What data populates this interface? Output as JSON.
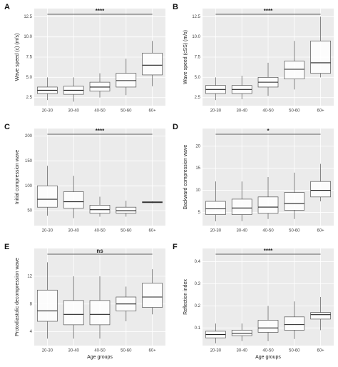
{
  "chart_data": [
    {
      "type": "box",
      "panel": "A",
      "ylabel": "Wave speed (c) (m/s)",
      "significance": "****",
      "categories": [
        "20-30",
        "30-40",
        "40-50",
        "50-60",
        "60+"
      ],
      "boxes": [
        {
          "min": 2.2,
          "q1": 3.0,
          "median": 3.4,
          "q3": 3.8,
          "max": 5.0
        },
        {
          "min": 2.0,
          "q1": 2.9,
          "median": 3.4,
          "q3": 3.9,
          "max": 5.0
        },
        {
          "min": 2.5,
          "q1": 3.3,
          "median": 3.8,
          "q3": 4.4,
          "max": 5.5
        },
        {
          "min": 2.8,
          "q1": 3.8,
          "median": 4.6,
          "q3": 5.5,
          "max": 7.3
        },
        {
          "min": 3.9,
          "q1": 5.3,
          "median": 6.5,
          "q3": 8.0,
          "max": 9.5
        }
      ],
      "ylim": [
        1.5,
        13.5
      ],
      "yticks": [
        2.5,
        {
          "value": 5,
          "label": "5.0"
        },
        7.5,
        {
          "value": 10,
          "label": "10.0"
        },
        12.5
      ],
      "grid": true
    },
    {
      "type": "box",
      "panel": "B",
      "ylabel": "Wave speed (cSS) (m/s)",
      "significance": "****",
      "categories": [
        "20-30",
        "30-40",
        "40-50",
        "50-60",
        "60+"
      ],
      "boxes": [
        {
          "min": 2.2,
          "q1": 3.0,
          "median": 3.5,
          "q3": 4.0,
          "max": 5.0
        },
        {
          "min": 2.3,
          "q1": 3.0,
          "median": 3.5,
          "q3": 4.0,
          "max": 5.2
        },
        {
          "min": 2.7,
          "q1": 3.8,
          "median": 4.4,
          "q3": 5.0,
          "max": 6.8
        },
        {
          "min": 3.5,
          "q1": 4.8,
          "median": 6.0,
          "q3": 7.0,
          "max": 9.5
        },
        {
          "min": 5.0,
          "q1": 5.5,
          "median": 6.8,
          "q3": 9.5,
          "max": 12.5
        }
      ],
      "ylim": [
        1.5,
        13.5
      ],
      "yticks": [
        2.5,
        {
          "value": 5,
          "label": "5.0"
        },
        7.5,
        {
          "value": 10,
          "label": "10.0"
        },
        12.5
      ],
      "grid": true
    },
    {
      "type": "box",
      "panel": "C",
      "ylabel": "Initial compression wave",
      "significance": "****",
      "categories": [
        "20-30",
        "30-40",
        "40-50",
        "50-60",
        "60+"
      ],
      "boxes": [
        {
          "min": 40,
          "q1": 57,
          "median": 73,
          "q3": 100,
          "max": 140
        },
        {
          "min": 35,
          "q1": 55,
          "median": 68,
          "q3": 88,
          "max": 120
        },
        {
          "min": 38,
          "q1": 45,
          "median": 52,
          "q3": 61,
          "max": 78
        },
        {
          "min": 38,
          "q1": 45,
          "median": 50,
          "q3": 57,
          "max": 70
        },
        {
          "min": 65,
          "q1": 66,
          "median": 67,
          "q3": 68,
          "max": 69
        }
      ],
      "ylim": [
        20,
        215
      ],
      "yticks": [
        50,
        100,
        150,
        200
      ],
      "grid": true
    },
    {
      "type": "box",
      "panel": "D",
      "ylabel": "Backward compression wave",
      "significance": "*",
      "categories": [
        "20-30",
        "30-40",
        "40-50",
        "50-60",
        "60+"
      ],
      "boxes": [
        {
          "min": 3,
          "q1": 4.5,
          "median": 5.8,
          "q3": 7.5,
          "max": 12
        },
        {
          "min": 3,
          "q1": 4.5,
          "median": 6,
          "q3": 8,
          "max": 12
        },
        {
          "min": 3.5,
          "q1": 4.8,
          "median": 6.2,
          "q3": 8.5,
          "max": 13
        },
        {
          "min": 3.5,
          "q1": 5.5,
          "median": 7,
          "q3": 9.5,
          "max": 14
        },
        {
          "min": 7.5,
          "q1": 8.5,
          "median": 10,
          "q3": 12,
          "max": 16
        }
      ],
      "ylim": [
        2,
        24
      ],
      "yticks": [
        5,
        10,
        15,
        20
      ],
      "grid": true
    },
    {
      "type": "box",
      "panel": "E",
      "ylabel": "Protodiastolic decompression wave",
      "significance": "ns",
      "xlabel": "Age groups",
      "categories": [
        "20-30",
        "30-40",
        "40-50",
        "50-60",
        "60+"
      ],
      "boxes": [
        {
          "min": 3,
          "q1": 5.5,
          "median": 7,
          "q3": 10,
          "max": 14
        },
        {
          "min": 3,
          "q1": 5,
          "median": 6.5,
          "q3": 8.5,
          "max": 12
        },
        {
          "min": 3,
          "q1": 5,
          "median": 6.5,
          "q3": 8.5,
          "max": 12
        },
        {
          "min": 5.5,
          "q1": 7,
          "median": 8,
          "q3": 9,
          "max": 10.5
        },
        {
          "min": 6.5,
          "q1": 7.5,
          "median": 9,
          "q3": 11,
          "max": 13
        }
      ],
      "ylim": [
        2,
        16
      ],
      "yticks": [
        4,
        8,
        12
      ],
      "grid": true
    },
    {
      "type": "box",
      "panel": "F",
      "ylabel": "Reflection index",
      "significance": "****",
      "xlabel": "Age groups",
      "categories": [
        "20-30",
        "30-40",
        "40-50",
        "50-60",
        "60+"
      ],
      "boxes": [
        {
          "min": 0.03,
          "q1": 0.055,
          "median": 0.07,
          "q3": 0.085,
          "max": 0.12
        },
        {
          "min": 0.04,
          "q1": 0.065,
          "median": 0.075,
          "q3": 0.09,
          "max": 0.12
        },
        {
          "min": 0.04,
          "q1": 0.08,
          "median": 0.1,
          "q3": 0.135,
          "max": 0.2
        },
        {
          "min": 0.05,
          "q1": 0.09,
          "median": 0.115,
          "q3": 0.15,
          "max": 0.22
        },
        {
          "min": 0.09,
          "q1": 0.14,
          "median": 0.16,
          "q3": 0.17,
          "max": 0.24
        }
      ],
      "ylim": [
        0.02,
        0.46
      ],
      "yticks": [
        0.1,
        0.2,
        0.3,
        0.4
      ],
      "grid": true
    }
  ]
}
